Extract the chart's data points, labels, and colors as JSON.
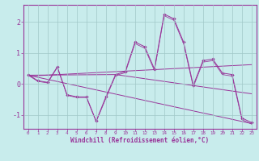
{
  "xlabel": "Windchill (Refroidissement éolien,°C)",
  "background_color": "#c8ecec",
  "grid_color": "#a0c8c8",
  "line_color": "#993399",
  "xlim": [
    -0.5,
    23.5
  ],
  "ylim": [
    -1.45,
    2.55
  ],
  "yticks": [
    -1,
    0,
    1,
    2
  ],
  "xticks": [
    0,
    1,
    2,
    3,
    4,
    5,
    6,
    7,
    8,
    9,
    10,
    11,
    12,
    13,
    14,
    15,
    16,
    17,
    18,
    19,
    20,
    21,
    22,
    23
  ],
  "line1_x": [
    0,
    1,
    2,
    3,
    4,
    5,
    6,
    7,
    8,
    9,
    10,
    11,
    12,
    13,
    14,
    15,
    16,
    17,
    18,
    19,
    20,
    21,
    22,
    23
  ],
  "line1_y": [
    0.3,
    0.1,
    0.05,
    0.55,
    -0.35,
    -0.42,
    -0.42,
    -1.2,
    -0.42,
    0.3,
    0.4,
    1.35,
    1.2,
    0.48,
    2.25,
    2.1,
    1.35,
    -0.05,
    0.75,
    0.8,
    0.35,
    0.3,
    -1.1,
    -1.25
  ],
  "line2_x": [
    0,
    1,
    2,
    3,
    4,
    5,
    6,
    7,
    8,
    9,
    10,
    11,
    12,
    13,
    14,
    15,
    16,
    17,
    18,
    19,
    20,
    21,
    22,
    23
  ],
  "line2_y": [
    0.28,
    0.08,
    0.03,
    0.53,
    -0.37,
    -0.44,
    -0.44,
    -1.22,
    -0.47,
    0.27,
    0.36,
    1.3,
    1.15,
    0.43,
    2.2,
    2.05,
    1.3,
    -0.1,
    0.7,
    0.75,
    0.3,
    0.25,
    -1.15,
    -1.3
  ],
  "line3_x": [
    0,
    23
  ],
  "line3_y": [
    0.28,
    -1.28
  ],
  "line4_x": [
    0,
    23
  ],
  "line4_y": [
    0.25,
    0.62
  ],
  "line5_x": [
    0,
    9,
    23
  ],
  "line5_y": [
    0.28,
    0.3,
    -0.32
  ]
}
